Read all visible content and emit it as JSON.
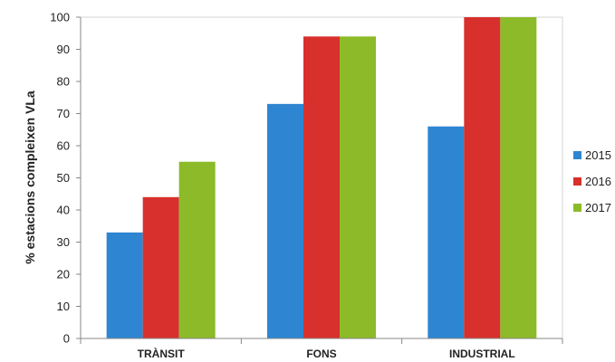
{
  "chart_data": {
    "type": "bar",
    "categories": [
      "TRÀNSIT",
      "FONS",
      "INDUSTRIAL"
    ],
    "series": [
      {
        "name": "2015",
        "values": [
          33,
          73,
          66
        ],
        "color": "#2E86D2"
      },
      {
        "name": "2016",
        "values": [
          44,
          94,
          100
        ],
        "color": "#D8302C"
      },
      {
        "name": "2017",
        "values": [
          55,
          94,
          100
        ],
        "color": "#8DBA28"
      }
    ],
    "title": "",
    "xlabel": "",
    "ylabel": "% estacions compleixen VLa",
    "ylim": [
      0,
      100
    ],
    "yticks": [
      0,
      10,
      20,
      30,
      40,
      50,
      60,
      70,
      80,
      90,
      100
    ],
    "grid": false,
    "legend_position": "right"
  }
}
